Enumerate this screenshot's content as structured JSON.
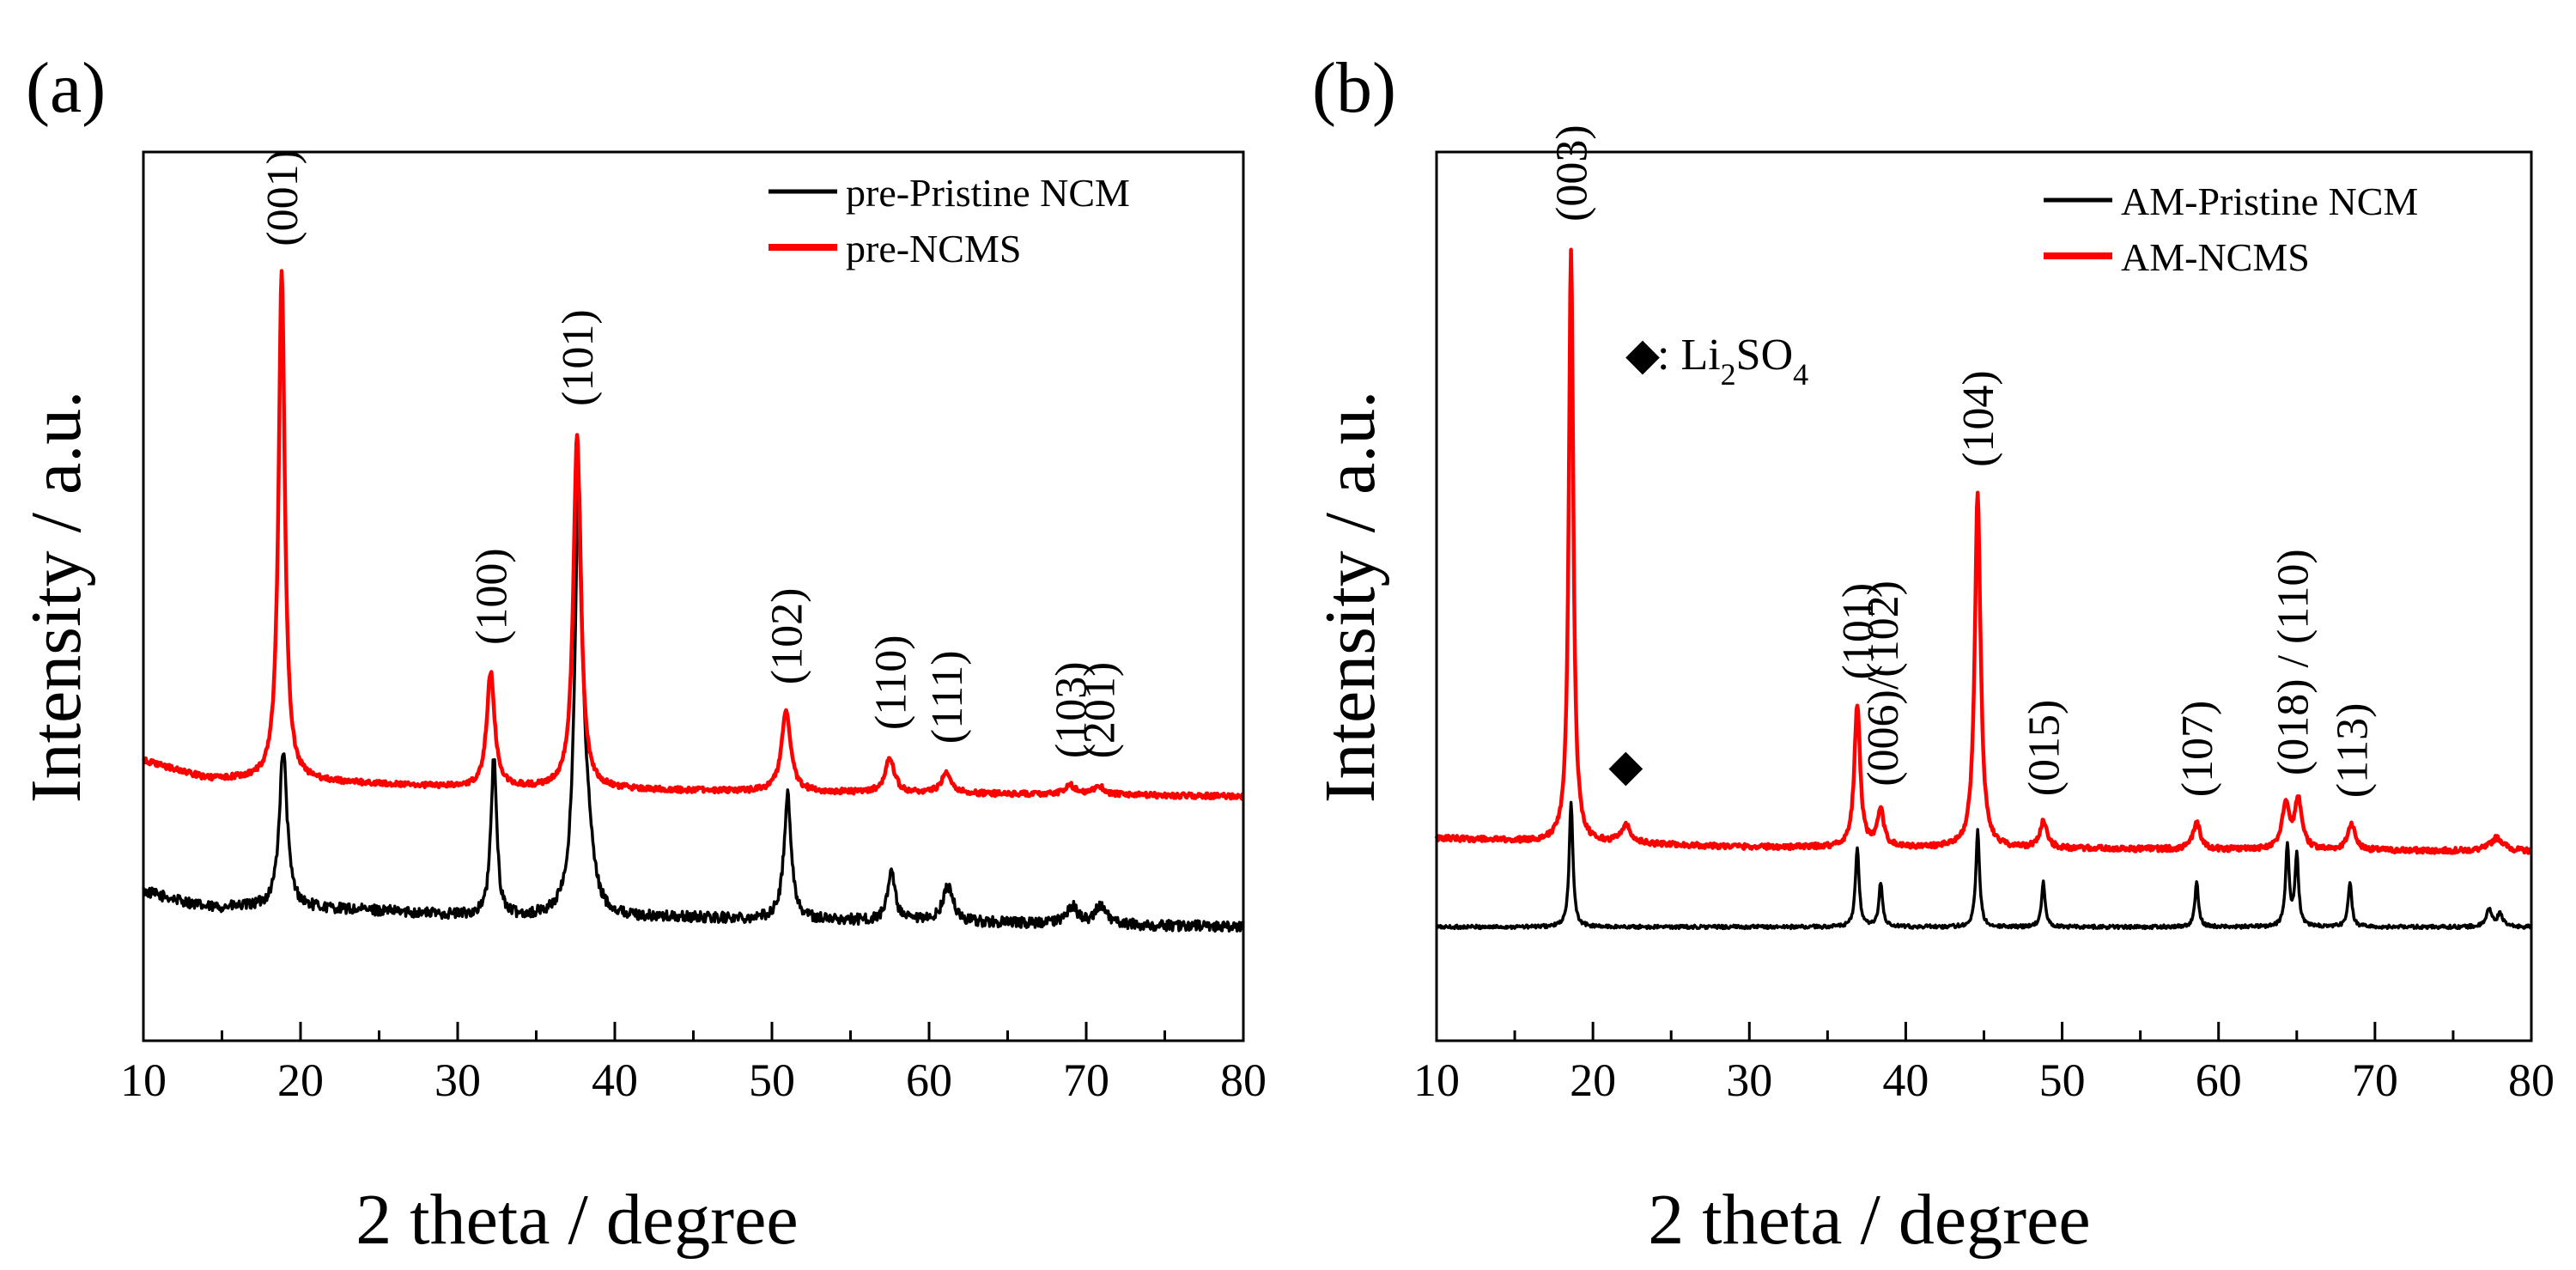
{
  "chart_data": [
    {
      "type": "line",
      "panel_label": "(a)",
      "xlabel": "2 theta / degree",
      "ylabel": "Intensity / a.u.",
      "xlim": [
        10,
        80
      ],
      "ylim": [
        0,
        1
      ],
      "x_ticks": [
        10,
        20,
        30,
        40,
        50,
        60,
        70,
        80
      ],
      "y_ticks_labeled": false,
      "grid": false,
      "legend_position": "top-right",
      "series": [
        {
          "name": "pre-Pristine NCM",
          "color": "#000000",
          "baseline": 0.138,
          "noise": 0.006,
          "background": [
            [
              10,
              0.03
            ],
            [
              14,
              0.012
            ],
            [
              19,
              0.012
            ],
            [
              25,
              0.008
            ],
            [
              33,
              0.0
            ],
            [
              45,
              0.0
            ],
            [
              80,
              -0.01
            ]
          ],
          "peaks": [
            {
              "x": 18.9,
              "height": 0.176,
              "width": 0.3
            },
            {
              "x": 32.3,
              "height": 0.18,
              "width": 0.22
            },
            {
              "x": 37.7,
              "height": 0.47,
              "width": 0.3
            },
            {
              "x": 38.3,
              "height": 0.06,
              "width": 0.4
            },
            {
              "x": 51.0,
              "height": 0.14,
              "width": 0.28
            },
            {
              "x": 57.6,
              "height": 0.06,
              "width": 0.26
            },
            {
              "x": 61.2,
              "height": 0.04,
              "width": 0.4
            },
            {
              "x": 69.1,
              "height": 0.02,
              "width": 0.4
            },
            {
              "x": 70.9,
              "height": 0.02,
              "width": 0.45
            }
          ]
        },
        {
          "name": "pre-NCMS",
          "color": "#ff0000",
          "baseline": 0.285,
          "noise": 0.003,
          "background": [
            [
              10,
              0.03
            ],
            [
              14,
              0.01
            ],
            [
              19,
              0.008
            ],
            [
              30,
              0.0
            ],
            [
              50,
              -0.005
            ],
            [
              80,
              -0.01
            ]
          ],
          "peaks": [
            {
              "x": 18.8,
              "height": 0.57,
              "width": 0.24
            },
            {
              "x": 32.1,
              "height": 0.13,
              "width": 0.3
            },
            {
              "x": 37.6,
              "height": 0.4,
              "width": 0.28
            },
            {
              "x": 50.9,
              "height": 0.09,
              "width": 0.35
            },
            {
              "x": 57.5,
              "height": 0.04,
              "width": 0.35
            },
            {
              "x": 61.1,
              "height": 0.025,
              "width": 0.35
            },
            {
              "x": 69.0,
              "height": 0.01,
              "width": 0.4
            },
            {
              "x": 70.8,
              "height": 0.01,
              "width": 0.4
            }
          ]
        }
      ],
      "annotations": [
        {
          "text": "(001)",
          "x": 18.8
        },
        {
          "text": "(100)",
          "x": 32.1
        },
        {
          "text": "(101)",
          "x": 37.6
        },
        {
          "text": "(102)",
          "x": 50.9
        },
        {
          "text": "(110)",
          "x": 57.5
        },
        {
          "text": "(111)",
          "x": 61.1
        },
        {
          "text": "(103)",
          "x": 69.0
        },
        {
          "text": "(201)",
          "x": 70.8
        }
      ]
    },
    {
      "type": "line",
      "panel_label": "(b)",
      "xlabel": "2 theta / degree",
      "ylabel": "Intensity / a.u.",
      "xlim": [
        10,
        80
      ],
      "ylim": [
        0,
        1
      ],
      "x_ticks": [
        10,
        20,
        30,
        40,
        50,
        60,
        70,
        80
      ],
      "y_ticks_labeled": false,
      "grid": false,
      "legend_position": "top-right",
      "note": {
        "marker": "◆",
        "prefix": ": Li",
        "sub1": "2",
        "mid": "SO",
        "sub2": "4"
      },
      "marker_point": {
        "x": 22.1,
        "y": 0.31
      },
      "series": [
        {
          "name": "AM-Pristine NCM",
          "color": "#000000",
          "baseline": 0.128,
          "noise": 0.002,
          "background": [
            [
              10,
              0.0
            ],
            [
              80,
              0.0
            ]
          ],
          "peaks": [
            {
              "x": 18.6,
              "height": 0.14,
              "width": 0.14
            },
            {
              "x": 36.9,
              "height": 0.09,
              "width": 0.14
            },
            {
              "x": 38.4,
              "height": 0.05,
              "width": 0.14
            },
            {
              "x": 44.6,
              "height": 0.11,
              "width": 0.14
            },
            {
              "x": 48.8,
              "height": 0.05,
              "width": 0.14
            },
            {
              "x": 58.6,
              "height": 0.05,
              "width": 0.14
            },
            {
              "x": 64.4,
              "height": 0.09,
              "width": 0.14
            },
            {
              "x": 65.0,
              "height": 0.08,
              "width": 0.14
            },
            {
              "x": 68.4,
              "height": 0.05,
              "width": 0.14
            },
            {
              "x": 77.3,
              "height": 0.02,
              "width": 0.2
            },
            {
              "x": 78.0,
              "height": 0.015,
              "width": 0.2
            }
          ]
        },
        {
          "name": "AM-NCMS",
          "color": "#ff0000",
          "baseline": 0.218,
          "noise": 0.003,
          "background": [
            [
              10,
              0.01
            ],
            [
              18,
              0.005
            ],
            [
              30,
              0.0
            ],
            [
              80,
              -0.005
            ]
          ],
          "peaks": [
            {
              "x": 18.6,
              "height": 0.67,
              "width": 0.17
            },
            {
              "x": 22.1,
              "height": 0.02,
              "width": 0.4
            },
            {
              "x": 36.9,
              "height": 0.16,
              "width": 0.22
            },
            {
              "x": 38.4,
              "height": 0.04,
              "width": 0.25
            },
            {
              "x": 44.6,
              "height": 0.4,
              "width": 0.22
            },
            {
              "x": 48.8,
              "height": 0.03,
              "width": 0.28
            },
            {
              "x": 58.6,
              "height": 0.03,
              "width": 0.28
            },
            {
              "x": 64.3,
              "height": 0.05,
              "width": 0.28
            },
            {
              "x": 65.1,
              "height": 0.055,
              "width": 0.28
            },
            {
              "x": 68.5,
              "height": 0.03,
              "width": 0.28
            },
            {
              "x": 77.8,
              "height": 0.015,
              "width": 0.5
            }
          ]
        }
      ],
      "annotations": [
        {
          "text": "(003)",
          "x": 18.6
        },
        {
          "text": "(101)",
          "x": 36.9
        },
        {
          "text": "(006)/(102)",
          "x": 38.5
        },
        {
          "text": "(104)",
          "x": 44.6
        },
        {
          "text": "(015)",
          "x": 48.8
        },
        {
          "text": "(107)",
          "x": 58.6
        },
        {
          "text": "(018) / (110)",
          "x": 64.7
        },
        {
          "text": "(113)",
          "x": 68.5
        }
      ]
    }
  ]
}
